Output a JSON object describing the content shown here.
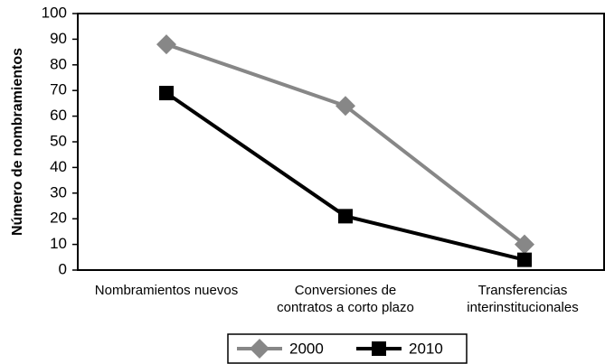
{
  "chart_data": {
    "type": "line",
    "y_label": "Número de nombramientos",
    "categories": [
      "Nombramientos nuevos",
      "Conversiones de\ncontratos a corto plazo",
      "Transferencias\ninterinstitucionales"
    ],
    "series": [
      {
        "name": "2000",
        "color": "#878787",
        "marker": "diamond",
        "values": [
          88,
          64,
          10
        ]
      },
      {
        "name": "2010",
        "color": "#000000",
        "marker": "square",
        "values": [
          69,
          21,
          4
        ]
      }
    ],
    "ylim": [
      0,
      100
    ],
    "yticks": [
      0,
      10,
      20,
      30,
      40,
      50,
      60,
      70,
      80,
      90,
      100
    ],
    "grid": false,
    "legend": "bottom"
  }
}
